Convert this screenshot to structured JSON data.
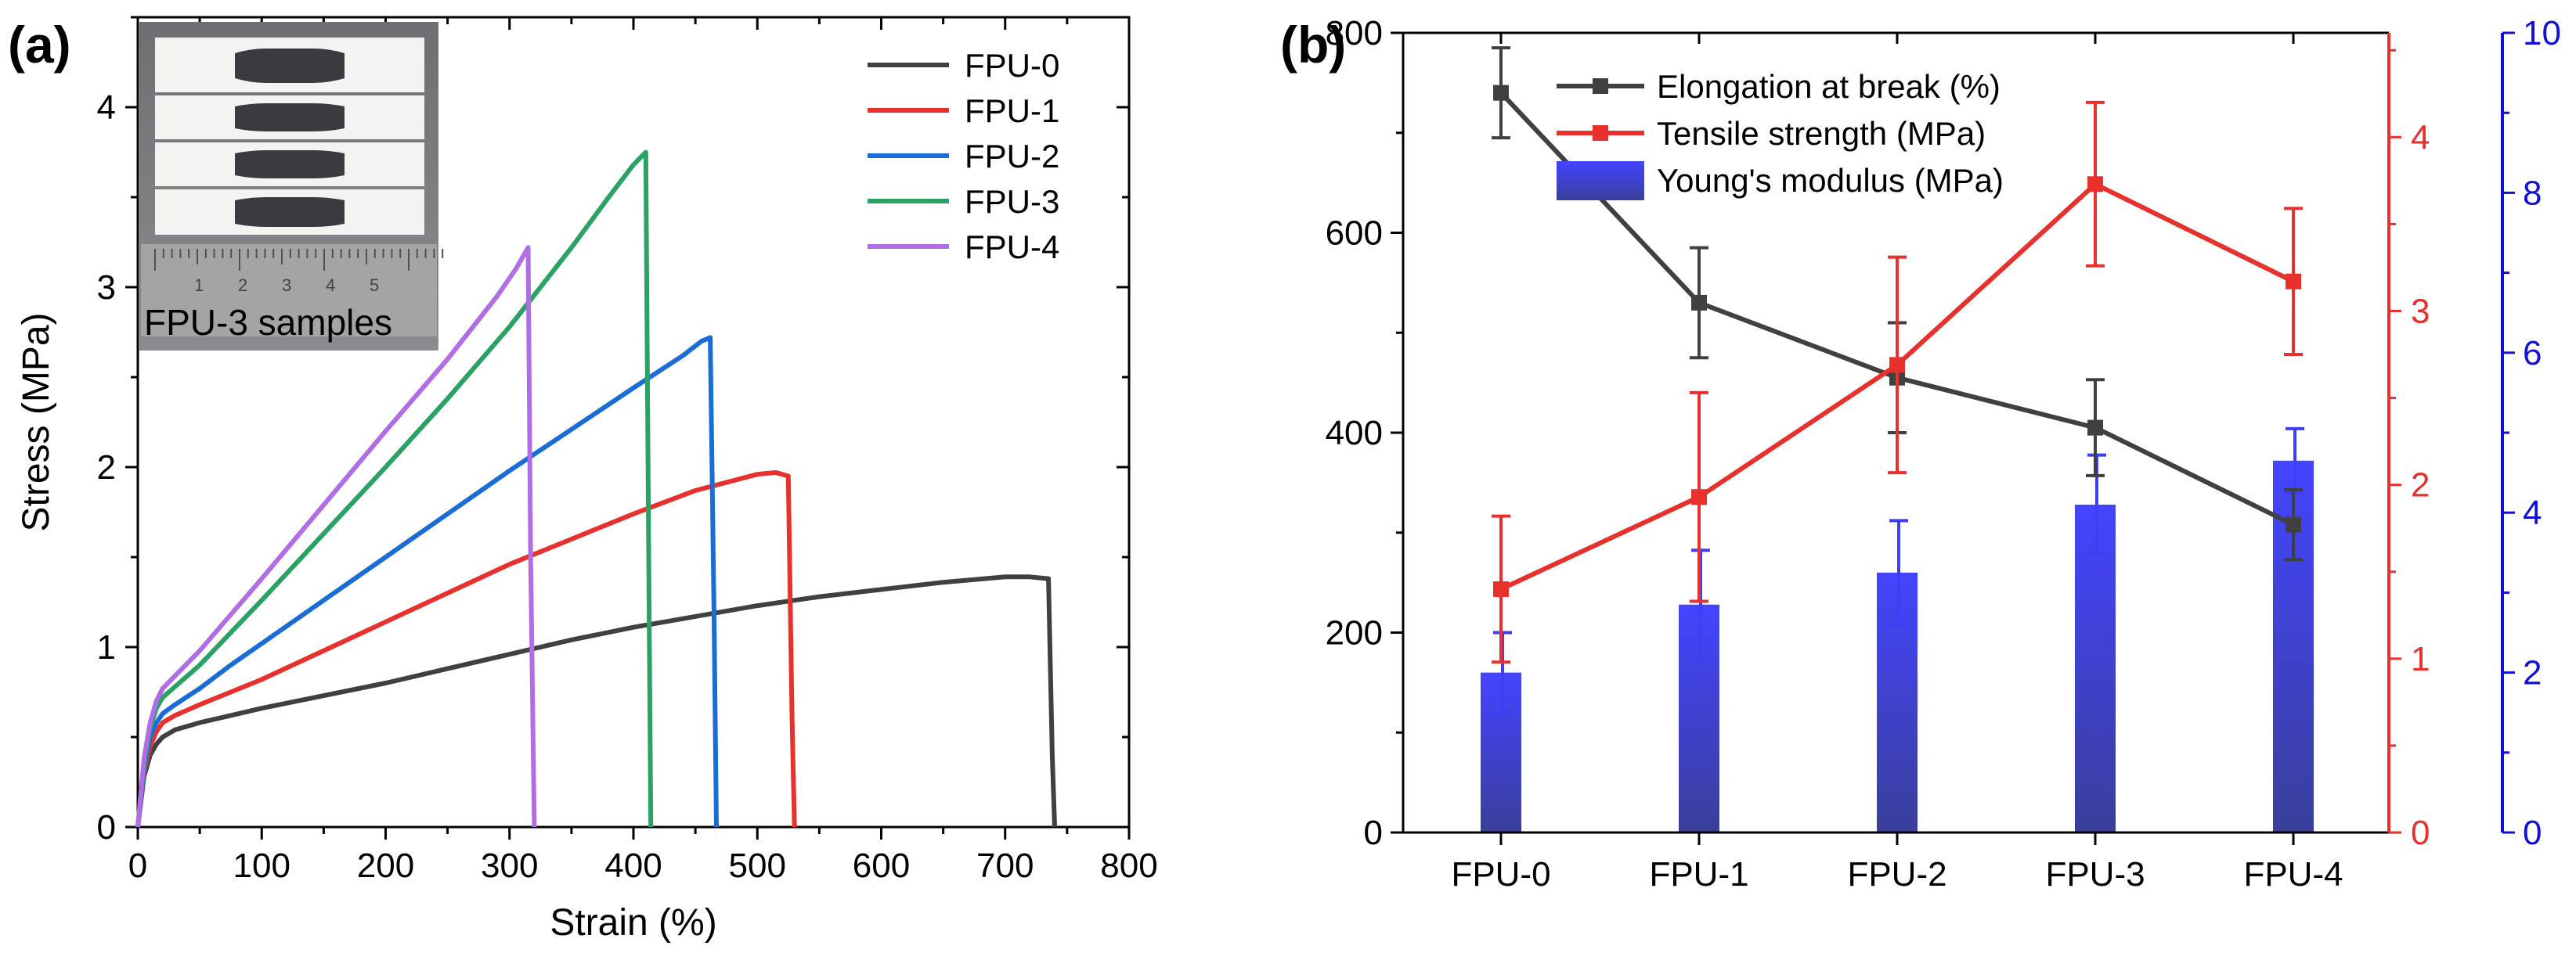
{
  "chart_data": [
    {
      "type": "line",
      "panel_label": "(a)",
      "xlabel": "Strain (%)",
      "ylabel": "Stress (MPa)",
      "xlim": [
        0,
        800
      ],
      "ylim": [
        0,
        4.5
      ],
      "xticks": [
        0,
        100,
        200,
        300,
        400,
        500,
        600,
        700,
        800
      ],
      "yticks": [
        0,
        1,
        2,
        3,
        4
      ],
      "legend_position": "top-right",
      "inset_caption": "FPU-3 samples",
      "inset_ruler_labels": [
        "1",
        "2",
        "3",
        "4",
        "5"
      ],
      "series": [
        {
          "name": "FPU-0",
          "color": "#404040",
          "x": [
            0,
            5,
            10,
            15,
            20,
            30,
            50,
            75,
            100,
            150,
            200,
            250,
            300,
            350,
            400,
            450,
            500,
            550,
            600,
            650,
            700,
            720,
            735,
            738,
            740
          ],
          "y": [
            0,
            0.28,
            0.4,
            0.46,
            0.5,
            0.54,
            0.58,
            0.62,
            0.66,
            0.73,
            0.8,
            0.88,
            0.96,
            1.04,
            1.11,
            1.17,
            1.23,
            1.28,
            1.32,
            1.36,
            1.39,
            1.39,
            1.38,
            0.4,
            0
          ]
        },
        {
          "name": "FPU-1",
          "color": "#e8302d",
          "x": [
            0,
            5,
            10,
            15,
            20,
            30,
            50,
            75,
            100,
            150,
            200,
            250,
            300,
            350,
            400,
            450,
            500,
            515,
            525,
            528,
            530
          ],
          "y": [
            0,
            0.3,
            0.45,
            0.53,
            0.58,
            0.62,
            0.68,
            0.75,
            0.82,
            0.98,
            1.14,
            1.3,
            1.46,
            1.6,
            1.74,
            1.87,
            1.96,
            1.97,
            1.95,
            0.6,
            0
          ]
        },
        {
          "name": "FPU-2",
          "color": "#1a6dd6",
          "x": [
            0,
            5,
            10,
            15,
            20,
            30,
            50,
            75,
            100,
            150,
            200,
            250,
            300,
            350,
            400,
            440,
            455,
            462,
            465,
            467
          ],
          "y": [
            0,
            0.32,
            0.5,
            0.58,
            0.63,
            0.68,
            0.77,
            0.9,
            1.02,
            1.26,
            1.5,
            1.74,
            1.98,
            2.21,
            2.44,
            2.62,
            2.7,
            2.72,
            1.2,
            0
          ]
        },
        {
          "name": "FPU-3",
          "color": "#2aa263",
          "x": [
            0,
            5,
            10,
            15,
            20,
            30,
            50,
            75,
            100,
            150,
            200,
            250,
            300,
            350,
            380,
            400,
            410,
            412,
            414
          ],
          "y": [
            0,
            0.35,
            0.55,
            0.66,
            0.72,
            0.78,
            0.9,
            1.08,
            1.26,
            1.63,
            2.0,
            2.38,
            2.78,
            3.22,
            3.5,
            3.68,
            3.75,
            1.8,
            0
          ]
        },
        {
          "name": "FPU-4",
          "color": "#b16de6",
          "x": [
            0,
            5,
            10,
            15,
            20,
            30,
            50,
            75,
            100,
            150,
            200,
            250,
            290,
            305,
            315,
            317,
            320
          ],
          "y": [
            0,
            0.38,
            0.58,
            0.7,
            0.77,
            0.84,
            0.98,
            1.18,
            1.38,
            1.79,
            2.2,
            2.6,
            2.95,
            3.1,
            3.22,
            1.5,
            0
          ]
        }
      ]
    },
    {
      "type": "bar",
      "panel_label": "(b)",
      "categories": [
        "FPU-0",
        "FPU-1",
        "FPU-2",
        "FPU-3",
        "FPU-4"
      ],
      "legend_position": "top-left",
      "axes": {
        "left": {
          "range": [
            0,
            800
          ],
          "ticks": [
            0,
            200,
            400,
            600,
            800
          ],
          "color": "#000000"
        },
        "right1": {
          "range": [
            0,
            4.6
          ],
          "ticks": [
            0,
            1,
            2,
            3,
            4
          ],
          "color": "#e8302d"
        },
        "right2": {
          "range": [
            0,
            10
          ],
          "ticks": [
            0,
            2,
            4,
            6,
            8,
            10
          ],
          "color": "#1010d8"
        }
      },
      "series": [
        {
          "name": "Elongation at break (%)",
          "kind": "line",
          "axis": "left",
          "color": "#404040",
          "values": [
            740,
            530,
            455,
            405,
            308
          ],
          "errors": [
            45,
            55,
            55,
            48,
            35
          ]
        },
        {
          "name": "Tensile strength (MPa)",
          "kind": "line",
          "axis": "right1",
          "color": "#e8302d",
          "values": [
            1.4,
            1.93,
            2.69,
            3.73,
            3.17
          ],
          "errors": [
            0.42,
            0.6,
            0.62,
            0.47,
            0.42
          ]
        },
        {
          "name": "Young's modulus (MPa)",
          "kind": "bar",
          "axis": "right2",
          "color": "#3e3ef6",
          "values": [
            2.0,
            2.85,
            3.25,
            4.1,
            4.65
          ],
          "errors": [
            0.5,
            0.68,
            0.65,
            0.62,
            0.4
          ]
        }
      ]
    }
  ]
}
